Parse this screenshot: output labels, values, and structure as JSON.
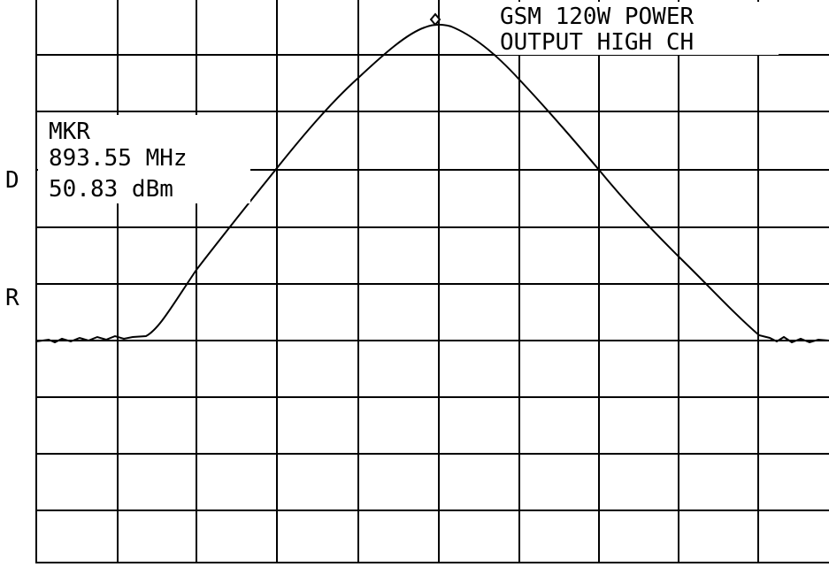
{
  "header": {
    "title_line_1": "GSM 120W POWER",
    "title_line_2": "OUTPUT HIGH CH"
  },
  "marker": {
    "label": "MKR",
    "frequency": "893.55 MHz",
    "level": "50.83 dBm"
  },
  "side_labels": [
    "D",
    "R"
  ]
}
